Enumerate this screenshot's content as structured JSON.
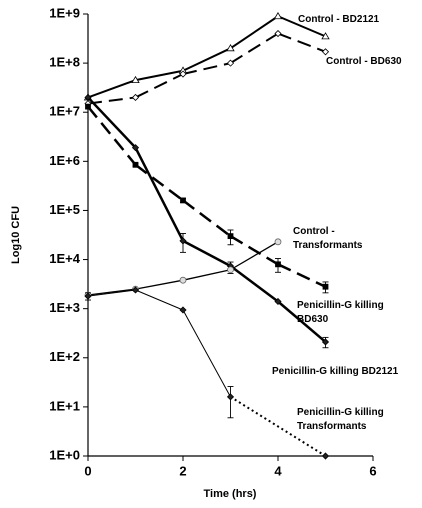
{
  "chart_data": {
    "type": "line",
    "x_label": "Time (hrs)",
    "y_label": "Log10 CFU",
    "xlim": [
      0,
      6
    ],
    "xticks": [
      0,
      2,
      4,
      6
    ],
    "ylim": [
      1,
      1000000000
    ],
    "log_y": true,
    "yticks": [
      {
        "value": 1,
        "label": "1E+0"
      },
      {
        "value": 10,
        "label": "1E+1"
      },
      {
        "value": 100,
        "label": "1E+2"
      },
      {
        "value": 1000,
        "label": "1E+3"
      },
      {
        "value": 10000,
        "label": "1E+4"
      },
      {
        "value": 100000,
        "label": "1E+5"
      },
      {
        "value": 1000000,
        "label": "1E+6"
      },
      {
        "value": 10000000,
        "label": "1E+7"
      },
      {
        "value": 100000000,
        "label": "1E+8"
      },
      {
        "value": 1000000000,
        "label": "1E+9"
      }
    ],
    "grid": false,
    "series": [
      {
        "name": "Control - BD2121",
        "color": "#000000",
        "marker": "triangle-open",
        "line_width": 2,
        "dash": "solid",
        "x": [
          0,
          1,
          2,
          3,
          4,
          5
        ],
        "values": [
          20000000,
          45000000,
          70000000,
          200000000,
          900000000,
          350000000
        ]
      },
      {
        "name": "Control - BD630",
        "color": "#000000",
        "marker": "diamond-open",
        "line_width": 2,
        "dash": "dashed",
        "x": [
          0,
          1,
          2,
          3,
          4,
          5
        ],
        "values": [
          15000000,
          20000000,
          60000000,
          100000000,
          400000000,
          170000000
        ]
      },
      {
        "name": "Penicillin-G killing BD630",
        "color": "#000000",
        "marker": "square",
        "line_width": 2.5,
        "dash": "dashed",
        "x": [
          0,
          1,
          2,
          3,
          4,
          5
        ],
        "values": [
          13000000,
          850000,
          160000,
          30000,
          8000,
          2800
        ],
        "errors": [
          null,
          50000,
          15000,
          10000,
          2500,
          700
        ]
      },
      {
        "name": "Penicillin-G killing BD2121",
        "color": "#000000",
        "marker": "diamond",
        "line_width": 2.5,
        "dash": "solid",
        "x": [
          0,
          1,
          2,
          3,
          4,
          5
        ],
        "values": [
          20000000,
          1900000,
          24000,
          7400,
          1400,
          210
        ],
        "errors": [
          null,
          null,
          10000,
          1500,
          null,
          50
        ]
      },
      {
        "name": "Control - Transformants",
        "color": "#000000",
        "marker": "circle-open",
        "line_width": 1.3,
        "dash": "solid",
        "x": [
          0,
          1,
          2,
          3,
          4
        ],
        "values": [
          1900,
          2500,
          3800,
          6200,
          23000
        ],
        "errors": [
          null,
          null,
          null,
          1000,
          null
        ]
      },
      {
        "name": "Penicillin-G killing Transformants",
        "color": "#000000",
        "marker": "diamond",
        "line_width": 1,
        "dash": "solid",
        "segment_dash": [
          "solid",
          "solid",
          "solid",
          "dotted"
        ],
        "x": [
          0,
          1,
          2,
          3,
          5
        ],
        "values": [
          1800,
          2400,
          940,
          16,
          1
        ],
        "errors": [
          300,
          null,
          null,
          10,
          null
        ]
      }
    ]
  }
}
